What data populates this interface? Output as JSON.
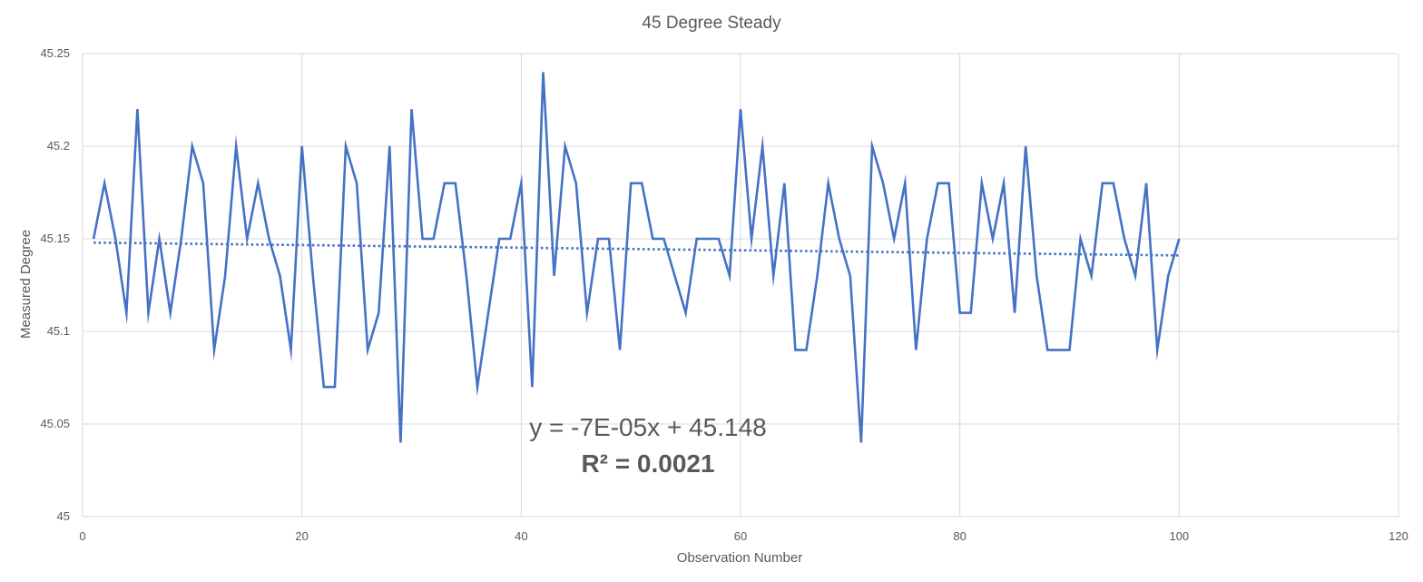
{
  "chart_data": {
    "type": "scatter",
    "title": "45 Degree Steady",
    "xlabel": "Observation Number",
    "ylabel": "Measured Degree",
    "xlim": [
      0,
      120
    ],
    "ylim": [
      45,
      45.25
    ],
    "x_ticks": [
      0,
      20,
      40,
      60,
      80,
      100,
      120
    ],
    "y_ticks": [
      "45",
      "45.05",
      "45.1",
      "45.15",
      "45.2",
      "45.25"
    ],
    "grid": true,
    "legend": "none",
    "series_color": "#4472C4",
    "series": [
      {
        "style": "line",
        "x": [
          1,
          2,
          3,
          4,
          5,
          6,
          7,
          8,
          9,
          10,
          11,
          12,
          13,
          14,
          15,
          16,
          17,
          18,
          19,
          20,
          21,
          22,
          23,
          24,
          25,
          26,
          27,
          28,
          29,
          30,
          31,
          32,
          33,
          34,
          35,
          36,
          37,
          38,
          39,
          40,
          41,
          42,
          43,
          44,
          45,
          46,
          47,
          48,
          49,
          50,
          51,
          52,
          53,
          54,
          55,
          56,
          57,
          58,
          59,
          60,
          61,
          62,
          63,
          64,
          65,
          66,
          67,
          68,
          69,
          70,
          71,
          72,
          73,
          74,
          75,
          76,
          77,
          78,
          79,
          80,
          81,
          82,
          83,
          84,
          85,
          86,
          87,
          88,
          89,
          90,
          91,
          92,
          93,
          94,
          95,
          96,
          97,
          98,
          99,
          100
        ],
        "y": [
          45.15,
          45.18,
          45.15,
          45.11,
          45.22,
          45.11,
          45.15,
          45.11,
          45.15,
          45.2,
          45.18,
          45.09,
          45.13,
          45.2,
          45.15,
          45.18,
          45.15,
          45.13,
          45.09,
          45.2,
          45.13,
          45.07,
          45.07,
          45.2,
          45.18,
          45.09,
          45.11,
          45.2,
          45.04,
          45.22,
          45.15,
          45.15,
          45.18,
          45.18,
          45.13,
          45.07,
          45.11,
          45.15,
          45.15,
          45.18,
          45.07,
          45.24,
          45.13,
          45.2,
          45.18,
          45.11,
          45.15,
          45.15,
          45.09,
          45.18,
          45.18,
          45.15,
          45.15,
          45.13,
          45.11,
          45.15,
          45.15,
          45.15,
          45.13,
          45.22,
          45.15,
          45.2,
          45.13,
          45.18,
          45.09,
          45.09,
          45.13,
          45.18,
          45.15,
          45.13,
          45.04,
          45.2,
          45.18,
          45.15,
          45.18,
          45.09,
          45.15,
          45.18,
          45.18,
          45.11,
          45.11,
          45.18,
          45.15,
          45.18,
          45.11,
          45.2,
          45.13,
          45.09,
          45.09,
          45.09,
          45.15,
          45.13,
          45.18,
          45.18,
          45.15,
          45.13,
          45.18,
          45.09,
          45.13,
          45.15
        ]
      }
    ],
    "trendline": {
      "type": "linear",
      "style": "dotted",
      "slope": -7e-05,
      "intercept": 45.148,
      "x_range": [
        1,
        100
      ],
      "equation": "y = -7E-05x + 45.148",
      "r_squared": "R² = 0.0021"
    }
  }
}
